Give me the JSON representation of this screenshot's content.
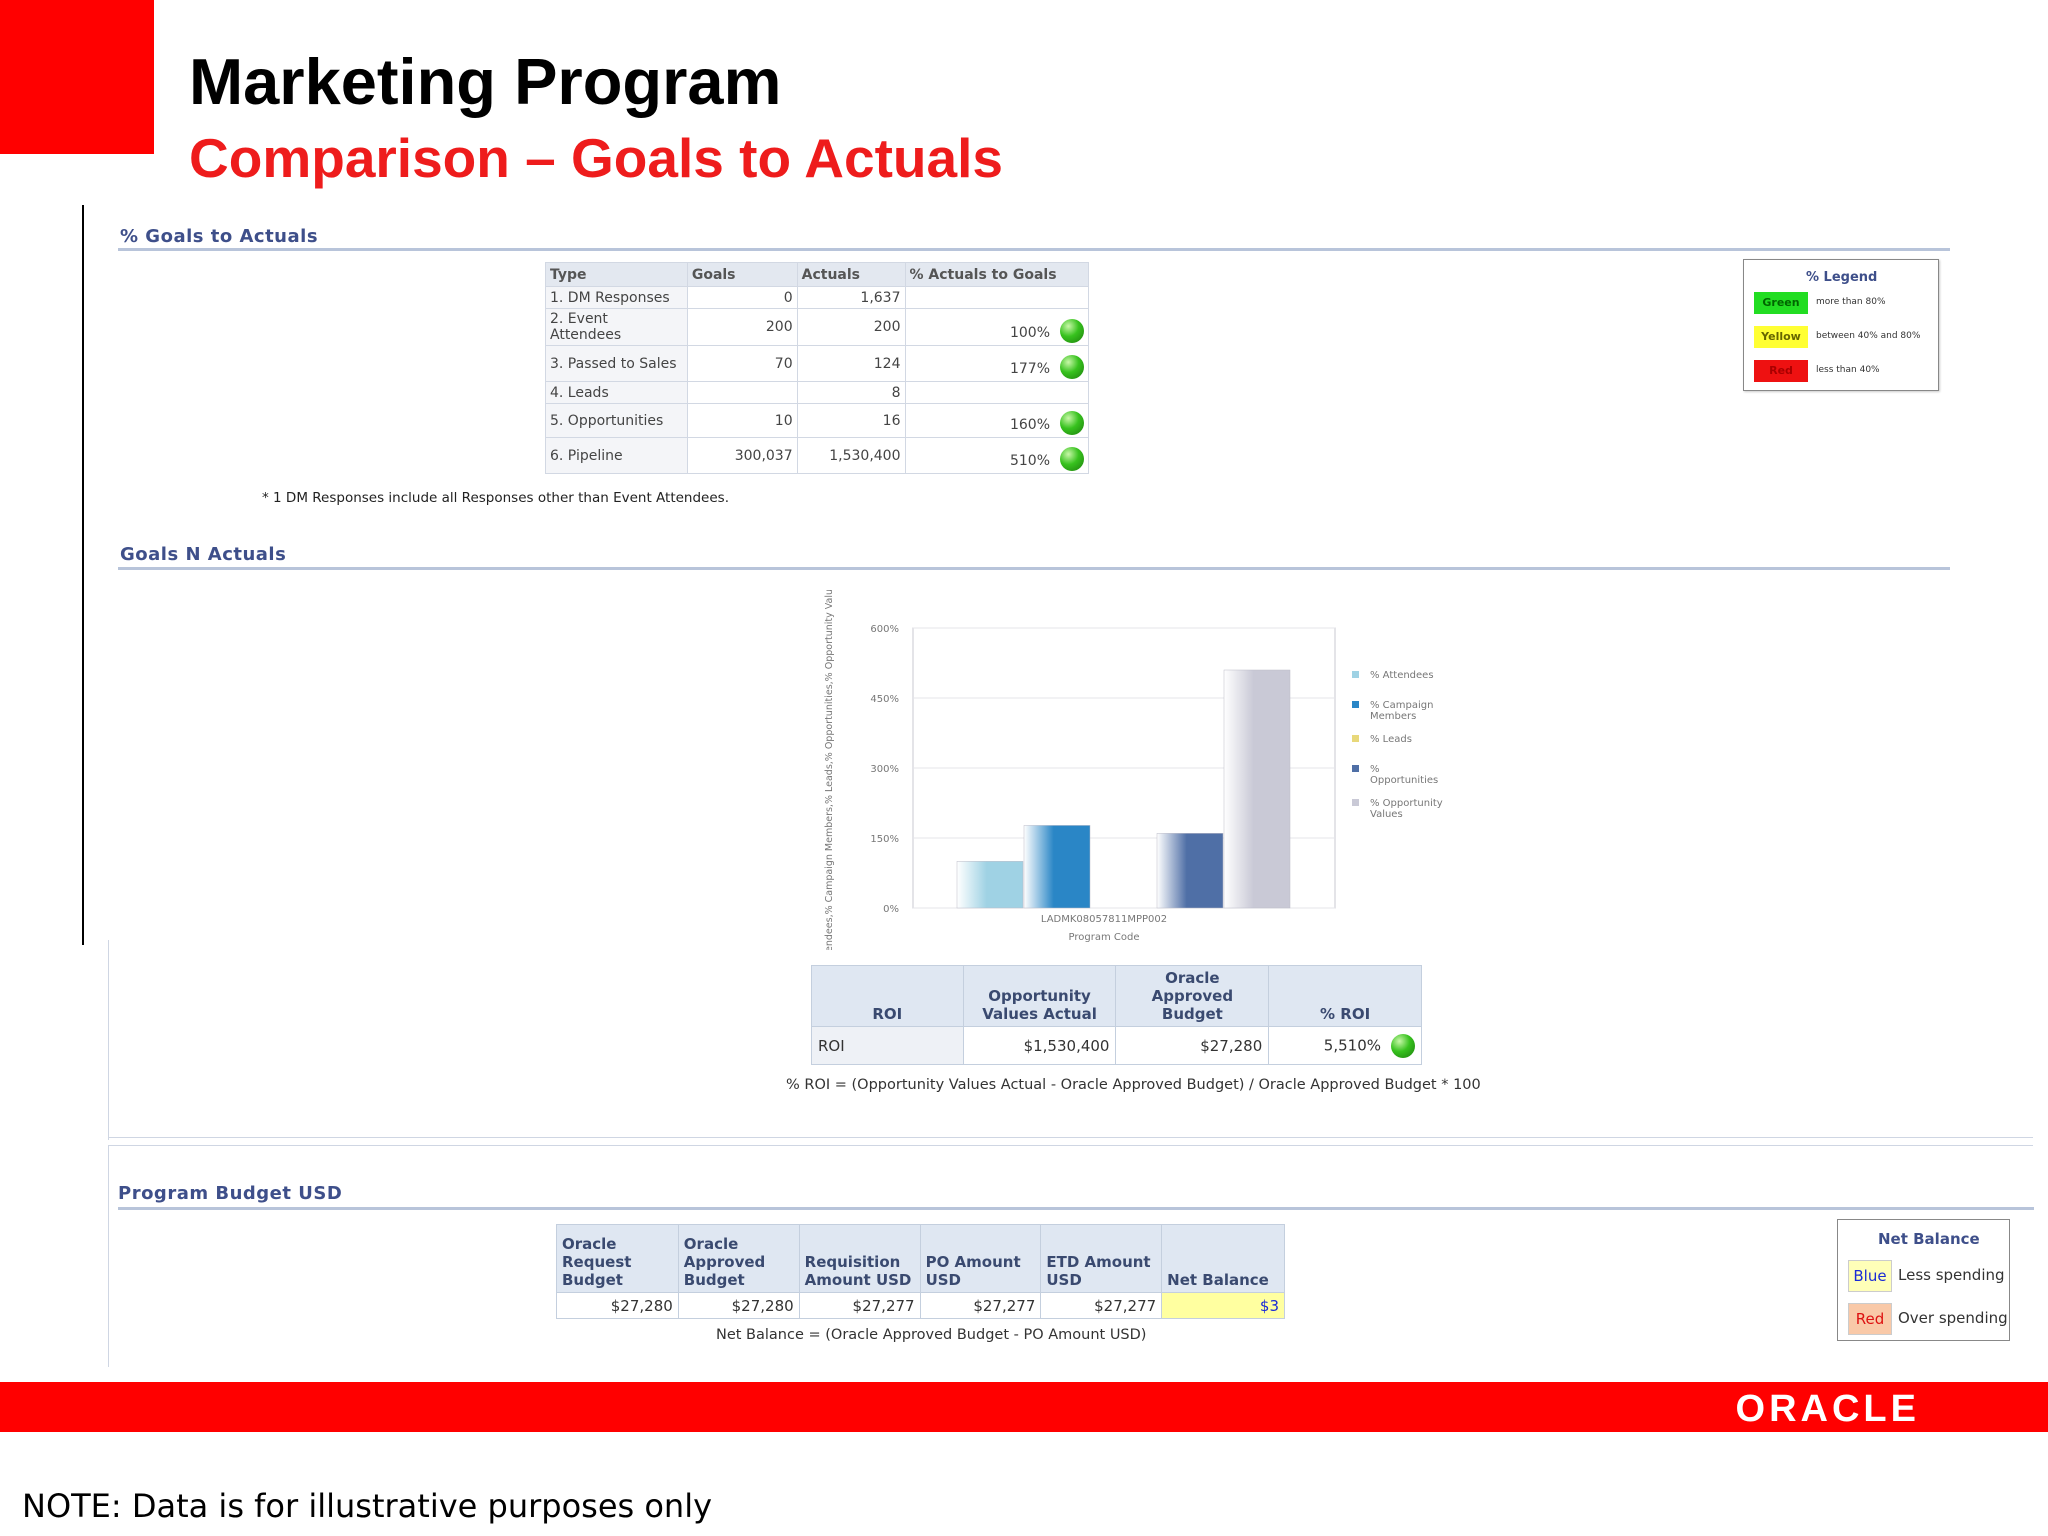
{
  "header": {
    "title": "Marketing Program",
    "subtitle": "Comparison – Goals to Actuals"
  },
  "goals_section": {
    "heading": "% Goals to Actuals",
    "columns": [
      "Type",
      "Goals",
      "Actuals",
      "% Actuals to Goals"
    ],
    "rows": [
      {
        "type": "1. DM Responses",
        "goals": "0",
        "actuals": "1,637",
        "pct": "",
        "indicator": false
      },
      {
        "type": "2. Event Attendees",
        "goals": "200",
        "actuals": "200",
        "pct": "100%",
        "indicator": true
      },
      {
        "type": "3. Passed to Sales",
        "goals": "70",
        "actuals": "124",
        "pct": "177%",
        "indicator": true
      },
      {
        "type": "4. Leads",
        "goals": "",
        "actuals": "8",
        "pct": "",
        "indicator": false
      },
      {
        "type": "5. Opportunities",
        "goals": "10",
        "actuals": "16",
        "pct": "160%",
        "indicator": true
      },
      {
        "type": "6. Pipeline",
        "goals": "300,037",
        "actuals": "1,530,400",
        "pct": "510%",
        "indicator": true
      }
    ],
    "footnote": "* 1 DM Responses include all Responses other than Event Attendees."
  },
  "pct_legend": {
    "title": "% Legend",
    "items": [
      {
        "label": "Green",
        "desc": "more than 80%",
        "color": "#22dd22",
        "text_color": "#006600"
      },
      {
        "label": "Yellow",
        "desc": "between 40% and 80%",
        "color": "#ffff33",
        "text_color": "#666600"
      },
      {
        "label": "Red",
        "desc": "less than 40%",
        "color": "#ee1111",
        "text_color": "#aa0000"
      }
    ]
  },
  "goals_n_actuals": {
    "heading": "Goals N Actuals"
  },
  "chart_data": {
    "type": "bar",
    "categories": [
      "LADMK08057811MPP002"
    ],
    "xlabel": "Program Code",
    "ylabel": "% Attendees,% Campaign Members,% Leads,% Opportunities,% Opportunity Values",
    "ylim": [
      0,
      600
    ],
    "yticks": [
      "0%",
      "150%",
      "300%",
      "450%",
      "600%"
    ],
    "legend_position": "right",
    "series": [
      {
        "name": "% Attendees",
        "values": [
          100
        ],
        "color": "#9fd2e4"
      },
      {
        "name": "% Campaign Members",
        "values": [
          177
        ],
        "color": "#2a86c6"
      },
      {
        "name": "% Leads",
        "values": [
          0
        ],
        "color": "#e8d87a"
      },
      {
        "name": "% Opportunities",
        "values": [
          160
        ],
        "color": "#4f6fa6"
      },
      {
        "name": "% Opportunity Values",
        "values": [
          510
        ],
        "color": "#c9c9d6"
      }
    ]
  },
  "roi_table": {
    "headers": [
      "ROI",
      "Opportunity Values Actual",
      "Oracle Approved Budget",
      "% ROI"
    ],
    "row": {
      "label": "ROI",
      "opp_values": "$1,530,400",
      "budget": "$27,280",
      "pct_roi": "5,510%"
    },
    "formula": "% ROI = (Opportunity Values Actual - Oracle Approved Budget) / Oracle Approved Budget * 100"
  },
  "budget_section": {
    "heading": "Program Budget USD",
    "headers": [
      "Oracle Request Budget",
      "Oracle Approved Budget",
      "Requisition Amount USD",
      "PO Amount USD",
      "ETD Amount USD",
      "Net Balance"
    ],
    "row": [
      "$27,280",
      "$27,280",
      "$27,277",
      "$27,277",
      "$27,277",
      "$3"
    ],
    "formula": "Net Balance = (Oracle Approved Budget - PO Amount USD)"
  },
  "net_balance_legend": {
    "title": "Net Balance",
    "items": [
      {
        "label": "Blue",
        "desc": "Less spending",
        "color": "#ffffb8",
        "text_color": "#1a2bd6"
      },
      {
        "label": "Red",
        "desc": "Over spending",
        "color": "#f9c9a8",
        "text_color": "#dd1111"
      }
    ]
  },
  "footer": {
    "logo": "ORACLE",
    "note": "NOTE: Data is for illustrative purposes only"
  }
}
